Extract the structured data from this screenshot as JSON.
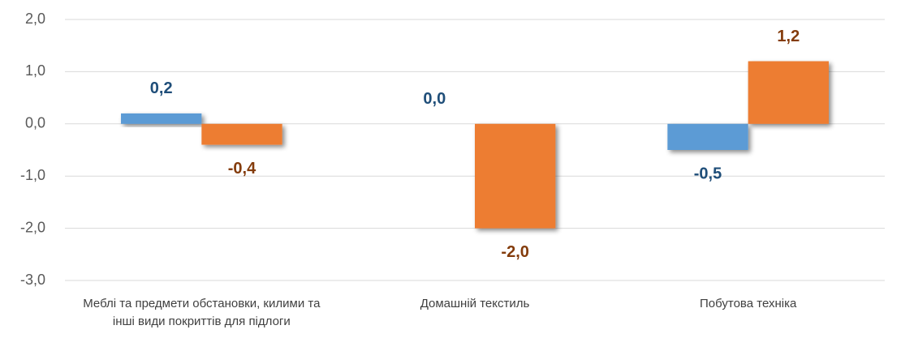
{
  "chart_data": {
    "type": "bar",
    "categories": [
      "Меблі та предмети обстановки, килими та інші види покриттів для підлоги",
      "Домашній текстиль",
      "Побутова техніка"
    ],
    "series": [
      {
        "color": "#5b9bd5",
        "label_color": "#1f4e79",
        "values": [
          0.2,
          0.0,
          -0.5
        ],
        "value_labels": [
          "0,2",
          "0,0",
          "-0,5"
        ]
      },
      {
        "color": "#ed7d31",
        "label_color": "#843c0c",
        "values": [
          -0.4,
          -2.0,
          1.2
        ],
        "value_labels": [
          "-0,4",
          "-2,0",
          "1,2"
        ]
      }
    ],
    "ylim": [
      -3,
      2
    ],
    "yticks": [
      {
        "value": -3,
        "label": "-3,0"
      },
      {
        "value": -2,
        "label": "-2,0"
      },
      {
        "value": -1,
        "label": "-1,0"
      },
      {
        "value": 0,
        "label": "0,0"
      },
      {
        "value": 1,
        "label": "1,0"
      },
      {
        "value": 2,
        "label": "2,0"
      }
    ],
    "grid": true
  }
}
